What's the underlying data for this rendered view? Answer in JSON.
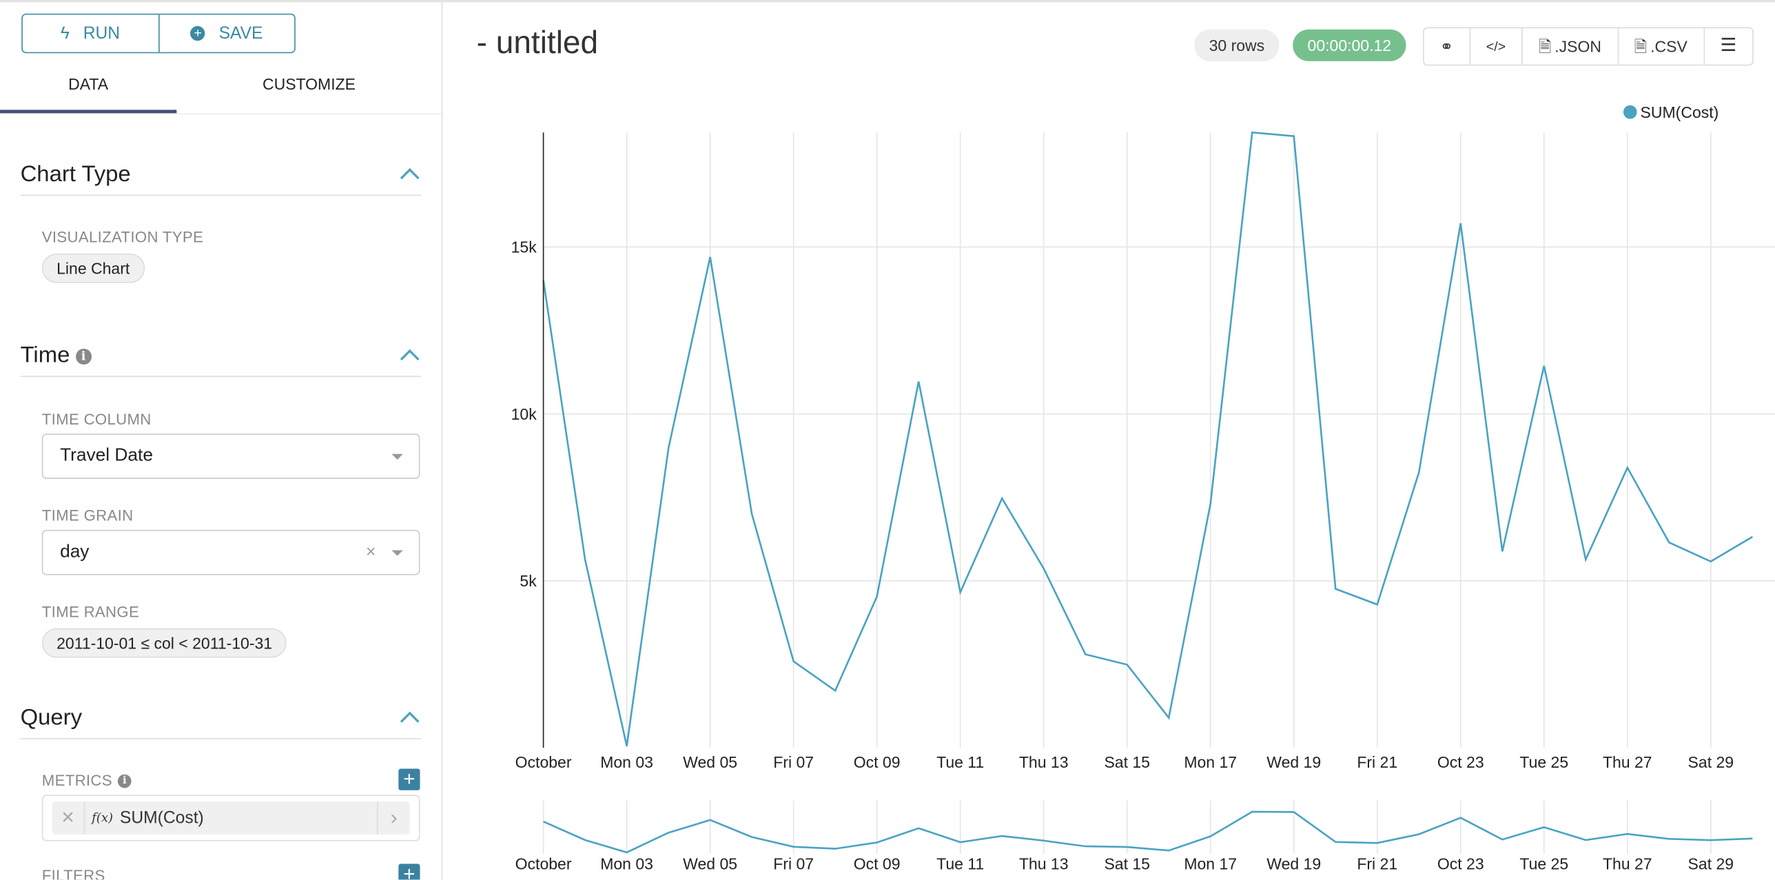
{
  "sidebar": {
    "run_label": "RUN",
    "save_label": "SAVE",
    "tabs": [
      "DATA",
      "CUSTOMIZE"
    ],
    "chart_type": {
      "title": "Chart Type",
      "viz_label": "VISUALIZATION TYPE",
      "viz_value": "Line Chart"
    },
    "time": {
      "title": "Time",
      "column_label": "TIME COLUMN",
      "column_value": "Travel Date",
      "grain_label": "TIME GRAIN",
      "grain_value": "day",
      "range_label": "TIME RANGE",
      "range_value": "2011-10-01 ≤ col < 2011-10-31"
    },
    "query": {
      "title": "Query",
      "metrics_label": "METRICS",
      "metric_value": "SUM(Cost)",
      "filters_label": "FILTERS"
    }
  },
  "main": {
    "title": "- untitled",
    "rows_badge": "30 rows",
    "timer_badge": "00:00:00.12",
    "tools": {
      "json": ".JSON",
      "csv": ".CSV"
    },
    "colors": {
      "accent": "#3b82a0",
      "line": "#4aa3c2",
      "timer": "#76c08e"
    }
  },
  "chart_data": {
    "type": "line",
    "x": [
      "2011-10-01",
      "2011-10-02",
      "2011-10-03",
      "2011-10-04",
      "2011-10-05",
      "2011-10-06",
      "2011-10-07",
      "2011-10-08",
      "2011-10-09",
      "2011-10-10",
      "2011-10-11",
      "2011-10-12",
      "2011-10-13",
      "2011-10-14",
      "2011-10-15",
      "2011-10-16",
      "2011-10-17",
      "2011-10-18",
      "2011-10-19",
      "2011-10-20",
      "2011-10-21",
      "2011-10-22",
      "2011-10-23",
      "2011-10-24",
      "2011-10-25",
      "2011-10-26",
      "2011-10-27",
      "2011-10-28",
      "2011-10-29",
      "2011-10-30"
    ],
    "series": [
      {
        "name": "SUM(Cost)",
        "values": [
          14000,
          5640,
          50,
          8970,
          14700,
          7000,
          2590,
          1710,
          4530,
          10970,
          4660,
          7470,
          5370,
          2800,
          2490,
          900,
          7310,
          18430,
          18320,
          4760,
          4290,
          8250,
          15710,
          5880,
          11440,
          5640,
          8390,
          6150,
          5580,
          6320
        ]
      }
    ],
    "x_ticks": [
      "October",
      "Mon 03",
      "Wed 05",
      "Fri 07",
      "Oct 09",
      "Tue 11",
      "Thu 13",
      "Sat 15",
      "Mon 17",
      "Wed 19",
      "Fri 21",
      "Oct 23",
      "Tue 25",
      "Thu 27",
      "Sat 29"
    ],
    "y_ticks": [
      "5k",
      "10k",
      "15k"
    ],
    "y_tick_values": [
      5000,
      10000,
      15000
    ],
    "ylim": [
      0,
      18430
    ],
    "grid": true,
    "legend": "top-right",
    "brush": true
  }
}
